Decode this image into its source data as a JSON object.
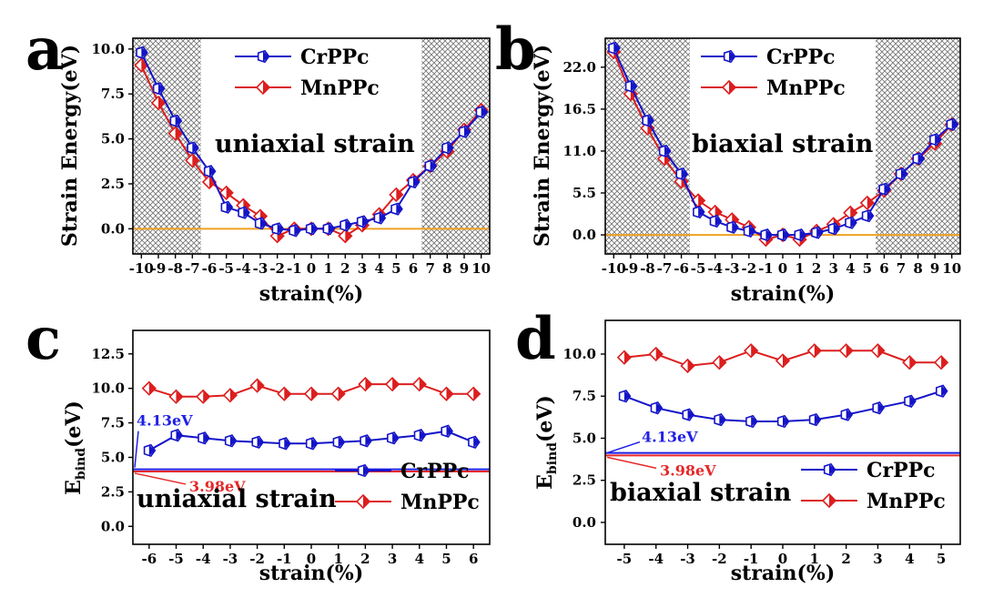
{
  "colors": {
    "cr": "#1414c8",
    "mn": "#dc1e1e",
    "zero": "#f0a020",
    "crLine": "#1e1ee6",
    "mnLine": "#e62828"
  },
  "chart_data": [
    {
      "panel": "a",
      "type": "line",
      "title": "uniaxial strain",
      "xlabel": "strain(%)",
      "ylabel": "Strain Energy(eV)",
      "xlim": [
        -10.5,
        10.5
      ],
      "ylim": [
        -1.4,
        10.6
      ],
      "x_ticks": [
        -10,
        -9,
        -8,
        -7,
        -6,
        -5,
        -4,
        -3,
        -2,
        -1,
        0,
        1,
        2,
        3,
        4,
        5,
        6,
        7,
        8,
        9,
        10
      ],
      "x_tick_labels": [
        "-10",
        "-9",
        "-8",
        "-7",
        "-6",
        "-5",
        "-4",
        "-3",
        "-2",
        "-1",
        "0",
        "1",
        "2",
        "3",
        "4",
        "5",
        "6",
        "7",
        "8",
        "9",
        "10"
      ],
      "y_ticks": [
        0,
        2.5,
        5,
        7.5,
        10
      ],
      "y_tick_labels": [
        "0.0",
        "2.5",
        "5.0",
        "7.5",
        "10.0"
      ],
      "hatch_regions": [
        [
          -10.5,
          -6.5
        ],
        [
          6.5,
          10.5
        ]
      ],
      "zero_line": 0,
      "legend": [
        "CrPPc",
        "MnPPc"
      ],
      "series": [
        {
          "name": "CrPPc",
          "x": [
            -10,
            -9,
            -8,
            -7,
            -6,
            -5,
            -4,
            -3,
            -2,
            -1,
            0,
            1,
            2,
            3,
            4,
            5,
            6,
            7,
            8,
            9,
            10
          ],
          "values": [
            9.8,
            7.8,
            6.0,
            4.5,
            3.2,
            1.2,
            0.9,
            0.3,
            0.0,
            -0.1,
            0.0,
            0.0,
            0.2,
            0.4,
            0.6,
            1.1,
            2.6,
            3.5,
            4.5,
            5.4,
            6.5
          ]
        },
        {
          "name": "MnPPc",
          "x": [
            -10,
            -9,
            -8,
            -7,
            -6,
            -5,
            -4,
            -3,
            -2,
            -1,
            0,
            1,
            2,
            3,
            4,
            5,
            6,
            7,
            8,
            9,
            10
          ],
          "values": [
            9.1,
            7.0,
            5.3,
            3.8,
            2.6,
            2.0,
            1.3,
            0.7,
            -0.4,
            0.0,
            0.0,
            0.0,
            -0.4,
            0.2,
            0.8,
            1.9,
            2.7,
            3.5,
            4.3,
            5.5,
            6.6
          ]
        }
      ]
    },
    {
      "panel": "b",
      "type": "line",
      "title": "biaxial strain",
      "xlabel": "strain(%)",
      "ylabel": "Strain Energy(eV)",
      "xlim": [
        -10.5,
        10.5
      ],
      "ylim": [
        -2.5,
        25.8
      ],
      "x_ticks": [
        -10,
        -9,
        -8,
        -7,
        -6,
        -5,
        -4,
        -3,
        -2,
        -1,
        0,
        1,
        2,
        3,
        4,
        5,
        6,
        7,
        8,
        9,
        10
      ],
      "x_tick_labels": [
        "-10",
        "-9",
        "-8",
        "-7",
        "-6",
        "-5",
        "-4",
        "-3",
        "-2",
        "-1",
        "0",
        "1",
        "2",
        "3",
        "4",
        "5",
        "6",
        "7",
        "8",
        "9",
        "10"
      ],
      "y_ticks": [
        0,
        5.5,
        11,
        16.5,
        22
      ],
      "y_tick_labels": [
        "0.0",
        "5.5",
        "11.0",
        "16.5",
        "22.0"
      ],
      "hatch_regions": [
        [
          -10.5,
          -5.5
        ],
        [
          5.5,
          10.5
        ]
      ],
      "zero_line": 0,
      "legend": [
        "CrPPc",
        "MnPPc"
      ],
      "series": [
        {
          "name": "CrPPc",
          "x": [
            -10,
            -9,
            -8,
            -7,
            -6,
            -5,
            -4,
            -3,
            -2,
            -1,
            0,
            1,
            2,
            3,
            4,
            5,
            6,
            7,
            8,
            9,
            10
          ],
          "values": [
            24.5,
            19.5,
            15.0,
            11.0,
            8.0,
            3.0,
            1.8,
            1.0,
            0.5,
            0.0,
            0.0,
            0.0,
            0.3,
            0.8,
            1.6,
            2.5,
            6.0,
            8.0,
            10.0,
            12.5,
            14.5
          ]
        },
        {
          "name": "MnPPc",
          "x": [
            -10,
            -9,
            -8,
            -7,
            -6,
            -5,
            -4,
            -3,
            -2,
            -1,
            0,
            1,
            2,
            3,
            4,
            5,
            6,
            7,
            8,
            9,
            10
          ],
          "values": [
            24.0,
            18.5,
            14.0,
            10.0,
            7.0,
            4.5,
            3.0,
            2.0,
            1.0,
            -0.6,
            0.0,
            -0.6,
            0.5,
            1.4,
            2.9,
            4.2,
            5.8,
            8.0,
            10.0,
            12.0,
            14.5
          ]
        }
      ]
    },
    {
      "panel": "c",
      "type": "line",
      "title": "uniaxial strain",
      "xlabel": "strain(%)",
      "ylabel": "E",
      "ylabel_sub": "bind",
      "ylabel_suffix": "(eV)",
      "xlim": [
        -6.6,
        6.6
      ],
      "ylim": [
        -1.3,
        14.2
      ],
      "x_ticks": [
        -6,
        -5,
        -4,
        -3,
        -2,
        -1,
        0,
        1,
        2,
        3,
        4,
        5,
        6
      ],
      "x_tick_labels": [
        "-6",
        "-5",
        "-4",
        "-3",
        "-2",
        "-1",
        "0",
        "1",
        "2",
        "3",
        "4",
        "5",
        "6"
      ],
      "y_ticks": [
        0,
        2.5,
        5,
        7.5,
        10,
        12.5
      ],
      "y_tick_labels": [
        "0.0",
        "2.5",
        "5.0",
        "7.5",
        "10.0",
        "12.5"
      ],
      "hlines": [
        {
          "y": 4.13,
          "label": "4.13eV",
          "series": "CrPPc"
        },
        {
          "y": 3.98,
          "label": "3.98eV",
          "series": "MnPPc"
        }
      ],
      "legend": [
        "CrPPc",
        "MnPPc"
      ],
      "series": [
        {
          "name": "CrPPc",
          "x": [
            -6,
            -5,
            -4,
            -3,
            -2,
            -1,
            0,
            1,
            2,
            3,
            4,
            5,
            6
          ],
          "values": [
            5.5,
            6.6,
            6.4,
            6.2,
            6.1,
            6.0,
            6.0,
            6.1,
            6.2,
            6.4,
            6.6,
            6.9,
            6.1
          ]
        },
        {
          "name": "MnPPc",
          "x": [
            -6,
            -5,
            -4,
            -3,
            -2,
            -1,
            0,
            1,
            2,
            3,
            4,
            5,
            6
          ],
          "values": [
            10.0,
            9.4,
            9.4,
            9.5,
            10.2,
            9.6,
            9.6,
            9.6,
            10.3,
            10.3,
            10.3,
            9.6,
            9.6
          ]
        }
      ]
    },
    {
      "panel": "d",
      "type": "line",
      "title": "biaxial  strain",
      "xlabel": "strain(%)",
      "ylabel": "E",
      "ylabel_sub": "bind",
      "ylabel_suffix": "(eV)",
      "xlim": [
        -5.6,
        5.6
      ],
      "ylim": [
        -1.3,
        12.0
      ],
      "x_ticks": [
        -5,
        -4,
        -3,
        -2,
        -1,
        0,
        1,
        2,
        3,
        4,
        5
      ],
      "x_tick_labels": [
        "-5",
        "-4",
        "-3",
        "-2",
        "-1",
        "0",
        "1",
        "2",
        "3",
        "4",
        "5"
      ],
      "y_ticks": [
        0,
        2.5,
        5,
        7.5,
        10
      ],
      "y_tick_labels": [
        "0.0",
        "2.5",
        "5.0",
        "7.5",
        "10.0"
      ],
      "hlines": [
        {
          "y": 4.13,
          "label": "4.13eV",
          "series": "CrPPc"
        },
        {
          "y": 3.98,
          "label": "3.98eV",
          "series": "MnPPc"
        }
      ],
      "legend": [
        "CrPPc",
        "MnPPc"
      ],
      "series": [
        {
          "name": "CrPPc",
          "x": [
            -5,
            -4,
            -3,
            -2,
            -1,
            0,
            1,
            2,
            3,
            4,
            5
          ],
          "values": [
            7.5,
            6.8,
            6.4,
            6.1,
            6.0,
            6.0,
            6.1,
            6.4,
            6.8,
            7.2,
            7.8
          ]
        },
        {
          "name": "MnPPc",
          "x": [
            -5,
            -4,
            -3,
            -2,
            -1,
            0,
            1,
            2,
            3,
            4,
            5
          ],
          "values": [
            9.8,
            10.0,
            9.3,
            9.5,
            10.2,
            9.6,
            10.2,
            10.2,
            10.2,
            9.5,
            9.5
          ]
        }
      ]
    }
  ]
}
